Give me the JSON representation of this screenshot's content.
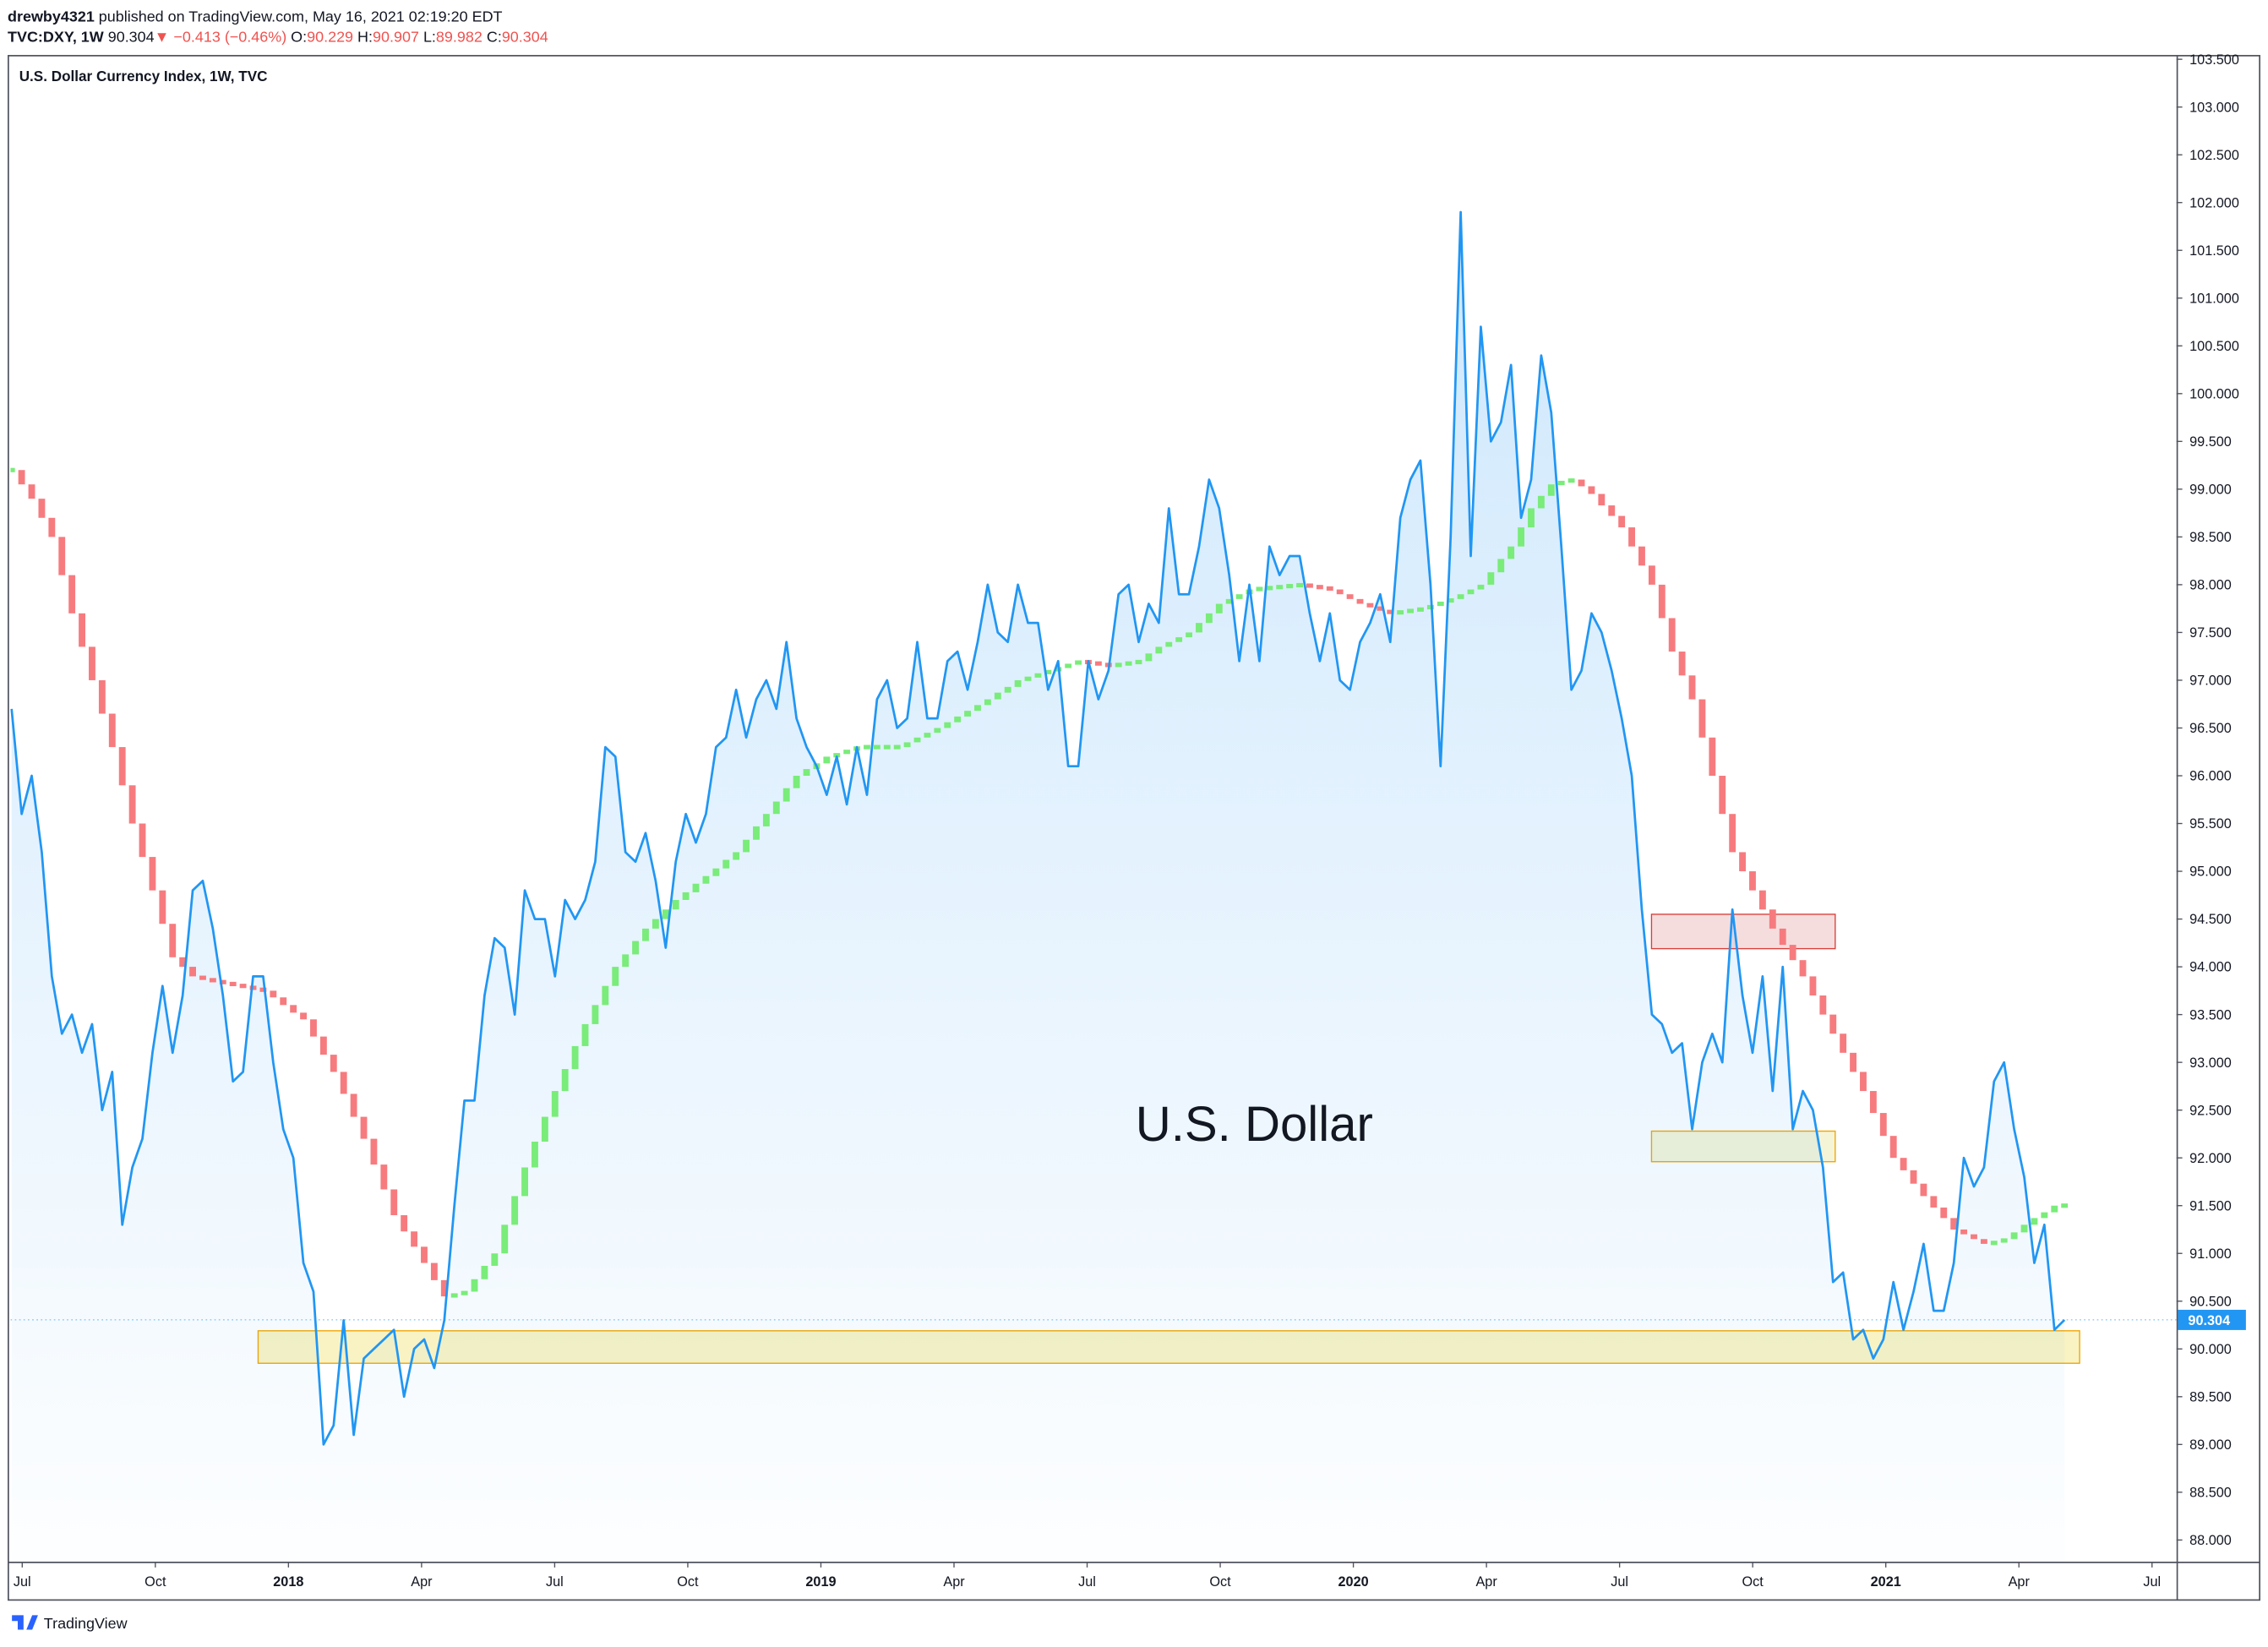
{
  "header": {
    "user": "drewby4321",
    "published": "published on TradingView.com, May 16, 2021 02:19:20 EDT",
    "symbol": "TVC:DXY, 1W",
    "last": "90.304",
    "arrow": "▼",
    "change": "−0.413 (−0.46%)",
    "ohlc": [
      {
        "label": "O:",
        "value": "90.229"
      },
      {
        "label": "H:",
        "value": "90.907"
      },
      {
        "label": "L:",
        "value": "89.982"
      },
      {
        "label": "C:",
        "value": "90.304"
      }
    ]
  },
  "footer": {
    "brand": "TradingView"
  },
  "chart_data": {
    "type": "line",
    "title": "U.S. Dollar Currency Index, 1W, TVC",
    "annotation": "U.S. Dollar",
    "xlim": [
      2017.478,
      2021.546
    ],
    "xticks": [
      {
        "value": 2017.5,
        "label": "Jul"
      },
      {
        "value": 2017.75,
        "label": "Oct"
      },
      2018,
      {
        "value": 2018.25,
        "label": "Apr"
      },
      {
        "value": 2018.5,
        "label": "Jul"
      },
      {
        "value": 2018.75,
        "label": "Oct"
      },
      2019,
      {
        "value": 2019.25,
        "label": "Apr"
      },
      {
        "value": 2019.5,
        "label": "Jul"
      },
      {
        "value": 2019.75,
        "label": "Oct"
      },
      2020,
      {
        "value": 2020.25,
        "label": "Apr"
      },
      {
        "value": 2020.5,
        "label": "Jul"
      },
      {
        "value": 2020.75,
        "label": "Oct"
      },
      2021,
      {
        "value": 2021.25,
        "label": "Apr"
      },
      {
        "value": 2021.5,
        "label": "Jul"
      }
    ],
    "ylim": [
      87.773,
      103.515
    ],
    "yticks": [
      {
        "value": 88,
        "label": "88.000"
      },
      {
        "value": 88.5,
        "label": "88.500"
      },
      {
        "value": 89,
        "label": "89.000"
      },
      {
        "value": 89.5,
        "label": "89.500"
      },
      {
        "value": 90,
        "label": "90.000"
      },
      {
        "value": 90.5,
        "label": "90.500"
      },
      {
        "value": 91,
        "label": "91.000"
      },
      {
        "value": 91.5,
        "label": "91.500"
      },
      {
        "value": 92,
        "label": "92.000"
      },
      {
        "value": 92.5,
        "label": "92.500"
      },
      {
        "value": 93,
        "label": "93.000"
      },
      {
        "value": 93.5,
        "label": "93.500"
      },
      {
        "value": 94,
        "label": "94.000"
      },
      {
        "value": 94.5,
        "label": "94.500"
      },
      {
        "value": 95,
        "label": "95.000"
      },
      {
        "value": 95.5,
        "label": "95.500"
      },
      {
        "value": 96,
        "label": "96.000"
      },
      {
        "value": 96.5,
        "label": "96.500"
      },
      {
        "value": 97,
        "label": "97.000"
      },
      {
        "value": 97.5,
        "label": "97.500"
      },
      {
        "value": 98,
        "label": "98.000"
      },
      {
        "value": 98.5,
        "label": "98.500"
      },
      {
        "value": 99,
        "label": "99.000"
      },
      {
        "value": 99.5,
        "label": "99.500"
      },
      {
        "value": 100,
        "label": "100.000"
      },
      {
        "value": 100.5,
        "label": "100.500"
      },
      {
        "value": 101,
        "label": "101.000"
      },
      {
        "value": 101.5,
        "label": "101.500"
      },
      {
        "value": 102,
        "label": "102.000"
      },
      {
        "value": 102.5,
        "label": "102.500"
      },
      {
        "value": 103,
        "label": "103.000"
      },
      {
        "value": 103.5,
        "label": "103.500"
      }
    ],
    "grid": false,
    "x": [
      2017.48,
      2017.4989,
      2017.5178,
      2017.5367,
      2017.5556,
      2017.5745,
      2017.5934,
      2017.6123,
      2017.6312,
      2017.6501,
      2017.669,
      2017.6879,
      2017.7068,
      2017.7257,
      2017.7446,
      2017.7635,
      2017.7824,
      2017.8013,
      2017.8202,
      2017.8391,
      2017.858,
      2017.8769,
      2017.8958,
      2017.9147,
      2017.9336,
      2017.9525,
      2017.9714,
      2017.9903,
      2018.0092,
      2018.0281,
      2018.047,
      2018.0659,
      2018.0848,
      2018.1037,
      2018.1226,
      2018.1415,
      2018.1604,
      2018.1793,
      2018.1982,
      2018.2171,
      2018.236,
      2018.2549,
      2018.2738,
      2018.2927,
      2018.3116,
      2018.3305,
      2018.3494,
      2018.3683,
      2018.3872,
      2018.4061,
      2018.425,
      2018.4439,
      2018.4628,
      2018.4817,
      2018.5006,
      2018.5195,
      2018.5384,
      2018.5573,
      2018.5762,
      2018.5951,
      2018.614,
      2018.6329,
      2018.6518,
      2018.6707,
      2018.6896,
      2018.7085,
      2018.7274,
      2018.7463,
      2018.7652,
      2018.7841,
      2018.803,
      2018.8219,
      2018.8408,
      2018.8597,
      2018.8786,
      2018.8975,
      2018.9164,
      2018.9353,
      2018.9542,
      2018.9731,
      2018.992,
      2019.0109,
      2019.0298,
      2019.0487,
      2019.0676,
      2019.0865,
      2019.1054,
      2019.1243,
      2019.1432,
      2019.1621,
      2019.181,
      2019.1999,
      2019.2188,
      2019.2377,
      2019.2566,
      2019.2755,
      2019.2944,
      2019.3133,
      2019.3322,
      2019.3511,
      2019.37,
      2019.3889,
      2019.4078,
      2019.4267,
      2019.4456,
      2019.4645,
      2019.4834,
      2019.5023,
      2019.5212,
      2019.5401,
      2019.559,
      2019.5779,
      2019.5968,
      2019.6157,
      2019.6346,
      2019.6535,
      2019.6724,
      2019.6913,
      2019.7102,
      2019.7291,
      2019.748,
      2019.7669,
      2019.7858,
      2019.8047,
      2019.8236,
      2019.8425,
      2019.8614,
      2019.8803,
      2019.8992,
      2019.9181,
      2019.937,
      2019.9559,
      2019.9748,
      2019.9937,
      2020.0126,
      2020.0315,
      2020.0504,
      2020.0693,
      2020.0882,
      2020.1071,
      2020.126,
      2020.1449,
      2020.1638,
      2020.1827,
      2020.2016,
      2020.2205,
      2020.2394,
      2020.2583,
      2020.2772,
      2020.2961,
      2020.315,
      2020.3339,
      2020.3528,
      2020.3717,
      2020.3906,
      2020.4095,
      2020.4284,
      2020.4473,
      2020.4662,
      2020.4851,
      2020.504,
      2020.5229,
      2020.5418,
      2020.5607,
      2020.5796,
      2020.5985,
      2020.6174,
      2020.6363,
      2020.6552,
      2020.6741,
      2020.693,
      2020.7119,
      2020.7308,
      2020.7497,
      2020.7686,
      2020.7875,
      2020.8064,
      2020.8253,
      2020.8442,
      2020.8631,
      2020.882,
      2020.9009,
      2020.9198,
      2020.9387,
      2020.9576,
      2020.9765,
      2020.9954,
      2021.0143,
      2021.0332,
      2021.0521,
      2021.071,
      2021.0899,
      2021.1088,
      2021.1277,
      2021.1466,
      2021.1655,
      2021.1844,
      2021.2033,
      2021.2222,
      2021.2411,
      2021.26,
      2021.2789,
      2021.2978,
      2021.3167,
      2021.3356
    ],
    "series": [
      {
        "type": "line",
        "color": "#2196f3",
        "values": [
          96.7,
          95.6,
          96.0,
          95.2,
          93.9,
          93.3,
          93.5,
          93.1,
          93.4,
          92.5,
          92.9,
          91.3,
          91.9,
          92.2,
          93.1,
          93.8,
          93.1,
          93.7,
          94.8,
          94.9,
          94.4,
          93.7,
          92.8,
          92.9,
          93.9,
          93.9,
          93.0,
          92.3,
          92.0,
          90.9,
          90.6,
          89.0,
          89.2,
          90.3,
          89.1,
          89.9,
          90.0,
          90.1,
          90.2,
          89.5,
          90.0,
          90.1,
          89.8,
          90.3,
          91.5,
          92.6,
          92.6,
          93.7,
          94.3,
          94.2,
          93.5,
          94.8,
          94.5,
          94.5,
          93.9,
          94.7,
          94.5,
          94.7,
          95.1,
          96.3,
          96.2,
          95.2,
          95.1,
          95.4,
          94.9,
          94.2,
          95.1,
          95.6,
          95.3,
          95.6,
          96.3,
          96.4,
          96.9,
          96.4,
          96.8,
          97.0,
          96.7,
          97.4,
          96.6,
          96.3,
          96.1,
          95.8,
          96.2,
          95.7,
          96.3,
          95.8,
          96.8,
          97.0,
          96.5,
          96.6,
          97.4,
          96.6,
          96.6,
          97.2,
          97.3,
          96.9,
          97.4,
          98.0,
          97.5,
          97.4,
          98.0,
          97.6,
          97.6,
          96.9,
          97.2,
          96.1,
          96.1,
          97.2,
          96.8,
          97.1,
          97.9,
          98.0,
          97.4,
          97.8,
          97.6,
          98.8,
          97.9,
          97.9,
          98.4,
          99.1,
          98.8,
          98.1,
          97.2,
          98.0,
          97.2,
          98.4,
          98.1,
          98.3,
          98.3,
          97.7,
          97.2,
          97.7,
          97.0,
          96.9,
          97.4,
          97.6,
          97.9,
          97.4,
          98.7,
          99.1,
          99.3,
          98.0,
          96.1,
          98.5,
          101.9,
          98.3,
          100.7,
          99.5,
          99.7,
          100.3,
          98.7,
          99.1,
          100.4,
          99.8,
          98.4,
          96.9,
          97.1,
          97.7,
          97.5,
          97.1,
          96.6,
          96.0,
          94.6,
          93.5,
          93.4,
          93.1,
          93.2,
          92.3,
          93.0,
          93.3,
          93.0,
          94.6,
          93.7,
          93.1,
          93.9,
          92.7,
          94.0,
          92.3,
          92.7,
          92.5,
          91.9,
          90.7,
          90.8,
          90.1,
          90.2,
          89.9,
          90.1,
          90.7,
          90.2,
          90.6,
          91.1,
          90.4,
          90.4,
          90.9,
          92.0,
          91.7,
          91.9,
          92.8,
          93.0,
          92.3,
          91.8,
          90.9,
          91.3,
          90.2,
          90.304
        ]
      },
      {
        "type": "blocks",
        "up_color": "#79ec79",
        "down_color": "#f67b7f",
        "values": [
          99.2,
          99.05,
          98.9,
          98.7,
          98.5,
          98.1,
          97.7,
          97.35,
          97.0,
          96.65,
          96.3,
          95.9,
          95.5,
          95.15,
          94.8,
          94.45,
          94.1,
          94.0,
          93.9,
          93.87,
          93.85,
          93.83,
          93.81,
          93.79,
          93.77,
          93.75,
          93.68,
          93.6,
          93.52,
          93.45,
          93.27,
          93.08,
          92.9,
          92.67,
          92.43,
          92.2,
          91.93,
          91.67,
          91.4,
          91.23,
          91.07,
          90.9,
          90.72,
          90.55,
          90.57,
          90.6,
          90.73,
          90.87,
          91.0,
          91.3,
          91.6,
          91.9,
          92.17,
          92.43,
          92.7,
          92.93,
          93.17,
          93.4,
          93.6,
          93.8,
          94.0,
          94.13,
          94.27,
          94.4,
          94.5,
          94.6,
          94.7,
          94.78,
          94.87,
          94.95,
          95.03,
          95.12,
          95.2,
          95.33,
          95.47,
          95.6,
          95.73,
          95.87,
          96.0,
          96.07,
          96.13,
          96.2,
          96.23,
          96.27,
          96.3,
          96.3,
          96.3,
          96.3,
          96.3,
          96.35,
          96.4,
          96.45,
          96.5,
          96.56,
          96.62,
          96.68,
          96.74,
          96.8,
          96.87,
          96.93,
          97.0,
          97.03,
          97.07,
          97.1,
          97.13,
          97.17,
          97.2,
          97.18,
          97.17,
          97.15,
          97.17,
          97.18,
          97.2,
          97.28,
          97.35,
          97.4,
          97.45,
          97.5,
          97.6,
          97.7,
          97.8,
          97.85,
          97.9,
          97.95,
          97.96,
          97.97,
          97.98,
          97.99,
          98.0,
          97.98,
          97.97,
          97.95,
          97.9,
          97.85,
          97.8,
          97.77,
          97.73,
          97.7,
          97.72,
          97.73,
          97.75,
          97.78,
          97.82,
          97.85,
          97.9,
          97.95,
          98.0,
          98.13,
          98.27,
          98.4,
          98.6,
          98.8,
          98.93,
          99.05,
          99.08,
          99.1,
          99.03,
          98.95,
          98.83,
          98.72,
          98.6,
          98.4,
          98.2,
          98.0,
          97.65,
          97.3,
          97.05,
          96.8,
          96.4,
          96.0,
          95.6,
          95.2,
          95.0,
          94.8,
          94.6,
          94.4,
          94.23,
          94.07,
          93.9,
          93.7,
          93.5,
          93.3,
          93.1,
          92.9,
          92.7,
          92.47,
          92.23,
          92.0,
          91.87,
          91.73,
          91.6,
          91.48,
          91.37,
          91.25,
          91.2,
          91.15,
          91.1,
          91.12,
          91.15,
          91.22,
          91.3,
          91.37,
          91.43,
          91.5,
          91.5
        ]
      }
    ],
    "zones": [
      {
        "x": [
          2017.943,
          2021.364
        ],
        "y": [
          89.85,
          90.19
        ],
        "fill": "#f7efb0",
        "stroke": "#f0a500"
      },
      {
        "x": [
          2020.56,
          2020.905
        ],
        "y": [
          94.19,
          94.55
        ],
        "fill": "#f3d2d2",
        "stroke": "#d9403a"
      },
      {
        "x": [
          2020.56,
          2020.905
        ],
        "y": [
          91.96,
          92.28
        ],
        "fill": "#f3f0c8",
        "stroke": "#f0a500"
      }
    ]
  }
}
